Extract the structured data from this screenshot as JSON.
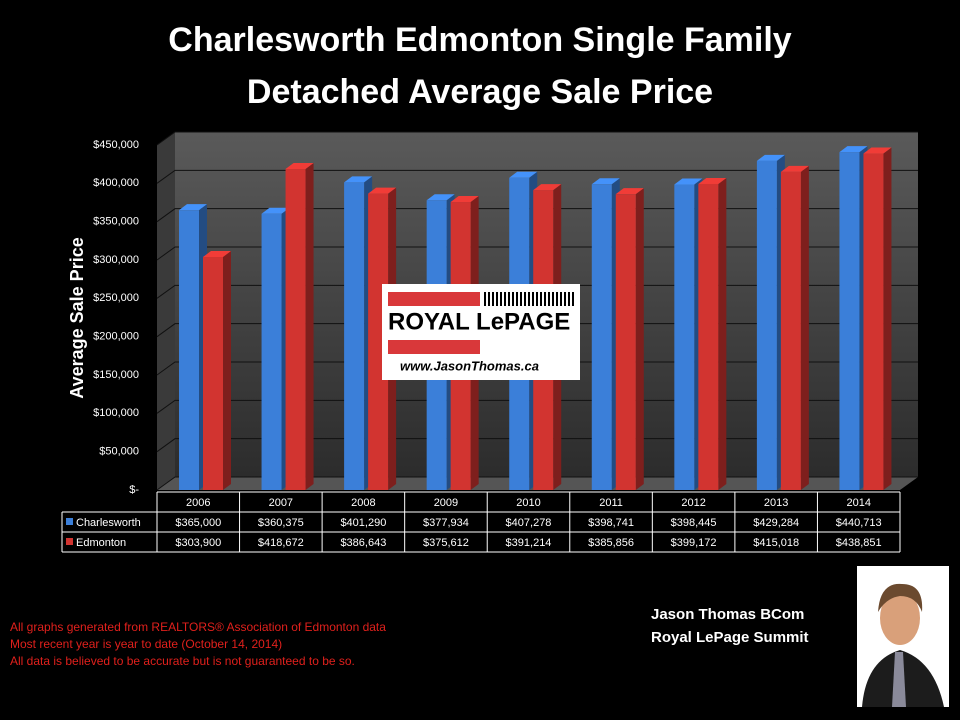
{
  "chart_data": {
    "type": "bar",
    "title": "Charlesworth Edmonton Single Family Detached Average Sale Price",
    "y_label": "Average Sale Price",
    "categories": [
      "2006",
      "2007",
      "2008",
      "2009",
      "2010",
      "2011",
      "2012",
      "2013",
      "2014"
    ],
    "series": [
      {
        "name": "Charlesworth",
        "color": "#3b7fd9",
        "values": [
          365000,
          360375,
          401290,
          377934,
          407278,
          398741,
          398445,
          429284,
          440713
        ],
        "value_labels": [
          "$365,000",
          "$360,375",
          "$401,290",
          "$377,934",
          "$407,278",
          "$398,741",
          "$398,445",
          "$429,284",
          "$440,713"
        ]
      },
      {
        "name": "Edmonton",
        "color": "#d23430",
        "values": [
          303900,
          418672,
          386643,
          375612,
          391214,
          385856,
          399172,
          415018,
          438851
        ],
        "value_labels": [
          "$303,900",
          "$418,672",
          "$386,643",
          "$375,612",
          "$391,214",
          "$385,856",
          "$399,172",
          "$415,018",
          "$438,851"
        ]
      }
    ],
    "ylim": [
      0,
      450000
    ],
    "yticks": [
      {
        "value": 0,
        "label": "$-"
      },
      {
        "value": 50000,
        "label": "$50,000"
      },
      {
        "value": 100000,
        "label": "$100,000"
      },
      {
        "value": 150000,
        "label": "$150,000"
      },
      {
        "value": 200000,
        "label": "$200,000"
      },
      {
        "value": 250000,
        "label": "$250,000"
      },
      {
        "value": 300000,
        "label": "$300,000"
      },
      {
        "value": 350000,
        "label": "$350,000"
      },
      {
        "value": 400000,
        "label": "$400,000"
      },
      {
        "value": 450000,
        "label": "$450,000"
      }
    ],
    "grid": true
  },
  "logo": {
    "brand": "ROYAL LePAGE",
    "url": "www.JasonThomas.ca"
  },
  "agent": {
    "name": "Jason Thomas BCom",
    "office": "Royal LePage Summit"
  },
  "notes": [
    "All graphs generated from REALTORS® Association of Edmonton data",
    "Most recent year is year to date (October 14, 2014)",
    "All data is believed to be accurate but is not guaranteed to be so."
  ]
}
